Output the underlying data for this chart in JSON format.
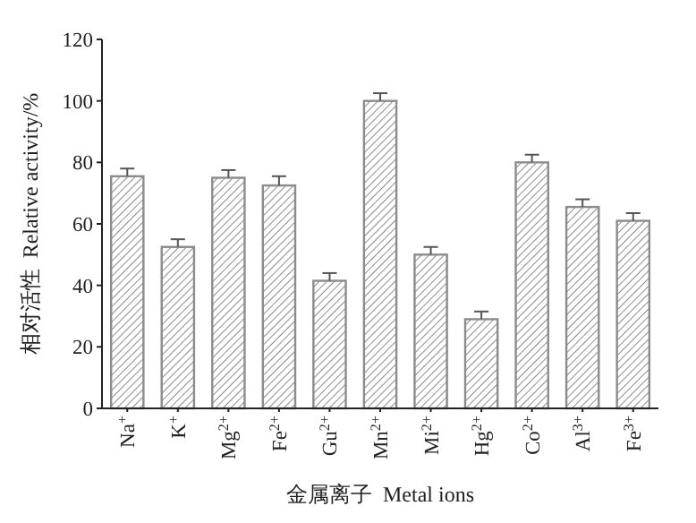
{
  "chart_data": {
    "type": "bar",
    "xlabel": "金属离子  Metal ions",
    "ylabel": "相对活性  Relative activity/%",
    "categories": [
      "Na$^{+}$",
      "K$^{+}$",
      "Mg$^{2+}$",
      "Fe$^{2+}$",
      "Gu$^{2+}$",
      "Mn$^{2+}$",
      "Mi$^{2+}$",
      "Hg$^{2+}$",
      "Co$^{2+}$",
      "Al$^{3+}$",
      "Fe$^{3+}$"
    ],
    "values": [
      75.5,
      52.5,
      75,
      72.5,
      41.5,
      100,
      50,
      29,
      80,
      65.5,
      61
    ],
    "errors": [
      [
        75.5,
        78
      ],
      [
        52.5,
        55
      ],
      [
        75,
        77.5
      ],
      [
        72.5,
        75.5
      ],
      [
        41.5,
        44
      ],
      [
        100,
        102.5
      ],
      [
        50,
        52.5
      ],
      [
        29,
        31.5
      ],
      [
        80,
        82.5
      ],
      [
        65.5,
        68
      ],
      [
        61,
        63.5
      ]
    ],
    "color": "#8c8c8c",
    "ylim": [
      0,
      120
    ],
    "yticks": [
      0,
      20,
      40,
      60,
      80,
      100,
      120
    ]
  }
}
